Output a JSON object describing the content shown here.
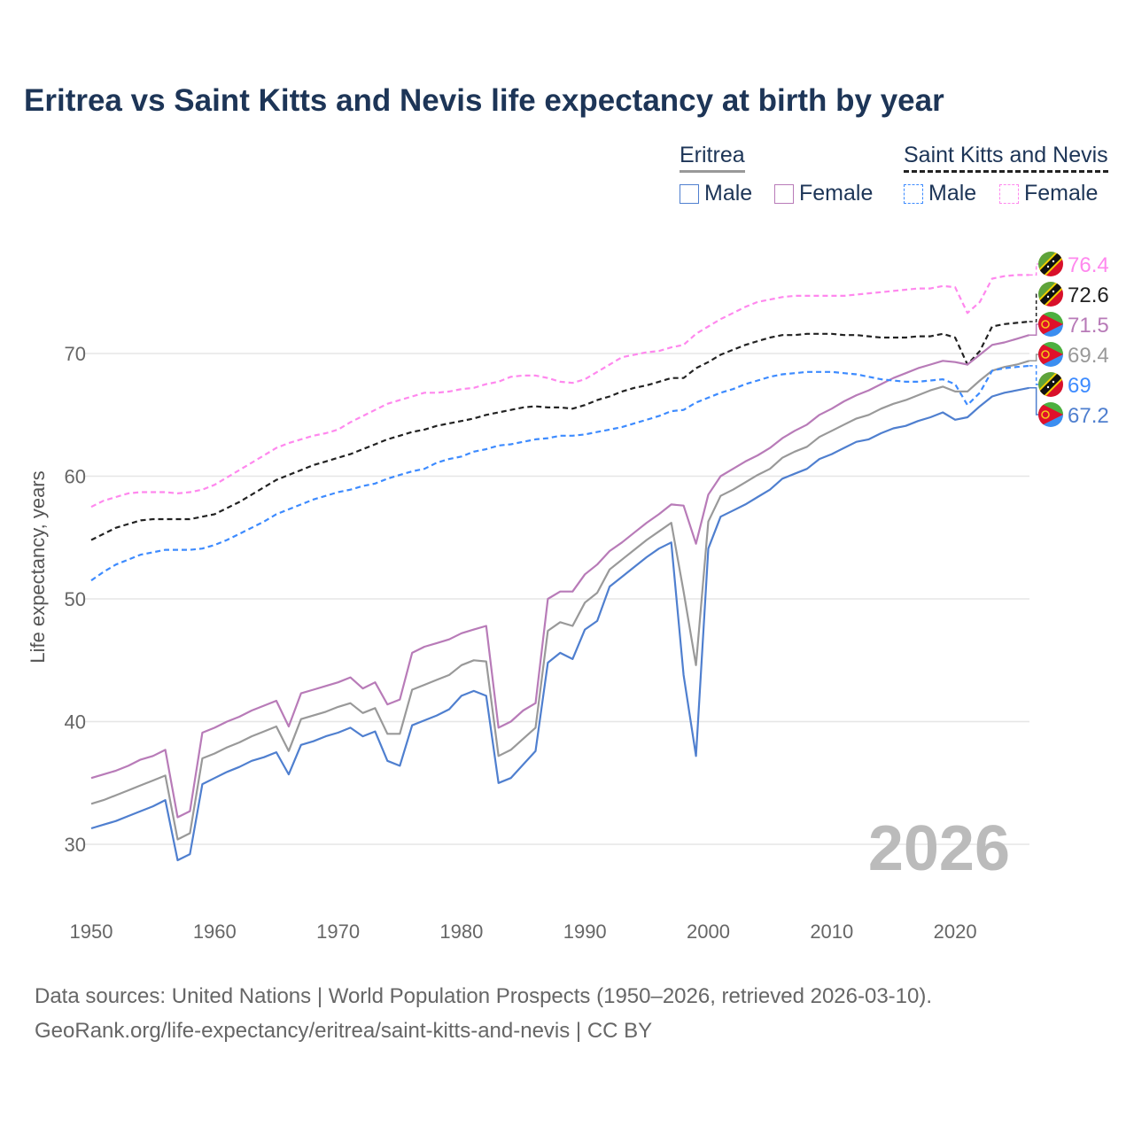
{
  "chart_data": {
    "type": "line",
    "title": "Eritrea vs Saint Kitts and Nevis life expectancy at birth by year",
    "xlabel": "",
    "ylabel": "Life expectancy, years",
    "xlim": [
      1950,
      2026
    ],
    "ylim": [
      25,
      80
    ],
    "x_ticks": [
      1950,
      1960,
      1970,
      1980,
      1990,
      2000,
      2010,
      2020
    ],
    "y_ticks": [
      30,
      40,
      50,
      60,
      70
    ],
    "grid": true,
    "watermark_year": "2026",
    "legend": {
      "placement": "top-right",
      "groups": [
        {
          "name": "Eritrea",
          "items": [
            "Male",
            "Female"
          ]
        },
        {
          "name": "Saint Kitts and Nevis",
          "items": [
            "Male",
            "Female"
          ]
        }
      ]
    },
    "x_start": 1950,
    "series": [
      {
        "name": "Saint Kitts and Nevis Female",
        "country": "skn",
        "color": "#ff88ee",
        "dashed": true,
        "end_label": "76.4",
        "values": [
          57.5,
          58.0,
          58.3,
          58.6,
          58.7,
          58.7,
          58.7,
          58.6,
          58.7,
          58.9,
          59.3,
          59.9,
          60.5,
          61.1,
          61.7,
          62.3,
          62.7,
          63.0,
          63.3,
          63.5,
          63.8,
          64.4,
          64.9,
          65.4,
          65.9,
          66.2,
          66.5,
          66.8,
          66.8,
          66.9,
          67.1,
          67.2,
          67.5,
          67.7,
          68.1,
          68.2,
          68.2,
          68.0,
          67.7,
          67.6,
          67.9,
          68.5,
          69.1,
          69.7,
          69.9,
          70.1,
          70.2,
          70.5,
          70.7,
          71.6,
          72.2,
          72.8,
          73.3,
          73.8,
          74.2,
          74.4,
          74.6,
          74.7,
          74.7,
          74.7,
          74.7,
          74.7,
          74.8,
          74.9,
          75.0,
          75.1,
          75.2,
          75.3,
          75.3,
          75.5,
          75.4,
          73.3,
          74.2,
          76.1,
          76.3,
          76.4,
          76.4
        ]
      },
      {
        "name": "Saint Kitts and Nevis",
        "country": "skn",
        "color": "#222222",
        "dashed": true,
        "end_label": "72.6",
        "values": [
          54.8,
          55.3,
          55.8,
          56.1,
          56.4,
          56.5,
          56.5,
          56.5,
          56.5,
          56.7,
          56.9,
          57.4,
          57.9,
          58.5,
          59.1,
          59.7,
          60.1,
          60.5,
          60.9,
          61.2,
          61.5,
          61.8,
          62.2,
          62.6,
          63.0,
          63.3,
          63.6,
          63.8,
          64.1,
          64.3,
          64.5,
          64.7,
          65.0,
          65.2,
          65.4,
          65.6,
          65.7,
          65.6,
          65.6,
          65.5,
          65.8,
          66.2,
          66.5,
          66.9,
          67.2,
          67.4,
          67.7,
          68.0,
          68.0,
          68.8,
          69.3,
          69.9,
          70.3,
          70.7,
          71.0,
          71.3,
          71.5,
          71.5,
          71.6,
          71.6,
          71.6,
          71.5,
          71.5,
          71.4,
          71.3,
          71.3,
          71.3,
          71.4,
          71.4,
          71.6,
          71.3,
          69.1,
          70.2,
          72.2,
          72.4,
          72.5,
          72.6
        ]
      },
      {
        "name": "Eritrea Female",
        "country": "eritrea",
        "color": "#b87bb8",
        "dashed": false,
        "end_label": "71.5",
        "values": [
          35.4,
          35.7,
          36.0,
          36.4,
          36.9,
          37.2,
          37.7,
          32.2,
          32.7,
          39.1,
          39.5,
          40.0,
          40.4,
          40.9,
          41.3,
          41.7,
          39.6,
          42.3,
          42.6,
          42.9,
          43.2,
          43.6,
          42.7,
          43.2,
          41.4,
          41.8,
          45.6,
          46.1,
          46.4,
          46.7,
          47.2,
          47.5,
          47.8,
          39.5,
          40.0,
          40.9,
          41.5,
          50.0,
          50.6,
          50.6,
          52.0,
          52.8,
          53.9,
          54.6,
          55.4,
          56.2,
          56.9,
          57.7,
          57.6,
          54.5,
          58.5,
          60.0,
          60.6,
          61.2,
          61.7,
          62.3,
          63.1,
          63.7,
          64.2,
          65.0,
          65.5,
          66.1,
          66.6,
          67.0,
          67.5,
          68.0,
          68.4,
          68.8,
          69.1,
          69.4,
          69.3,
          69.1,
          69.9,
          70.7,
          70.9,
          71.2,
          71.5
        ]
      },
      {
        "name": "Eritrea",
        "country": "eritrea",
        "color": "#999999",
        "dashed": false,
        "end_label": "69.4",
        "values": [
          33.3,
          33.6,
          34.0,
          34.4,
          34.8,
          35.2,
          35.6,
          30.4,
          30.9,
          37.0,
          37.4,
          37.9,
          38.3,
          38.8,
          39.2,
          39.6,
          37.6,
          40.2,
          40.5,
          40.8,
          41.2,
          41.5,
          40.7,
          41.1,
          39.0,
          39.0,
          42.6,
          43.0,
          43.4,
          43.8,
          44.6,
          45.0,
          44.9,
          37.2,
          37.7,
          38.6,
          39.5,
          47.4,
          48.1,
          47.8,
          49.7,
          50.5,
          52.4,
          53.2,
          54.0,
          54.8,
          55.5,
          56.2,
          50.6,
          44.6,
          56.3,
          58.4,
          58.9,
          59.5,
          60.1,
          60.6,
          61.5,
          62.0,
          62.4,
          63.2,
          63.7,
          64.2,
          64.7,
          65.0,
          65.5,
          65.9,
          66.2,
          66.6,
          67.0,
          67.3,
          66.9,
          66.9,
          67.8,
          68.6,
          68.9,
          69.1,
          69.4
        ]
      },
      {
        "name": "Saint Kitts and Nevis Male",
        "country": "skn",
        "color": "#3d8bff",
        "dashed": true,
        "end_label": "69",
        "values": [
          51.5,
          52.2,
          52.8,
          53.2,
          53.6,
          53.8,
          54.0,
          54.0,
          54.0,
          54.1,
          54.4,
          54.8,
          55.3,
          55.8,
          56.3,
          56.9,
          57.3,
          57.7,
          58.1,
          58.4,
          58.7,
          58.9,
          59.2,
          59.4,
          59.8,
          60.1,
          60.4,
          60.6,
          61.1,
          61.4,
          61.6,
          62.0,
          62.2,
          62.5,
          62.6,
          62.8,
          63.0,
          63.1,
          63.3,
          63.3,
          63.4,
          63.6,
          63.8,
          64.0,
          64.3,
          64.6,
          64.9,
          65.3,
          65.4,
          66.0,
          66.4,
          66.8,
          67.1,
          67.5,
          67.8,
          68.1,
          68.3,
          68.4,
          68.5,
          68.5,
          68.5,
          68.4,
          68.3,
          68.1,
          67.9,
          67.8,
          67.7,
          67.7,
          67.8,
          67.9,
          67.5,
          65.8,
          66.8,
          68.6,
          68.8,
          68.9,
          69.0
        ]
      },
      {
        "name": "Eritrea Male",
        "country": "eritrea",
        "color": "#4f7fcf",
        "dashed": false,
        "end_label": "67.2",
        "values": [
          31.3,
          31.6,
          31.9,
          32.3,
          32.7,
          33.1,
          33.6,
          28.7,
          29.2,
          34.9,
          35.4,
          35.9,
          36.3,
          36.8,
          37.1,
          37.5,
          35.7,
          38.1,
          38.4,
          38.8,
          39.1,
          39.5,
          38.8,
          39.2,
          36.8,
          36.4,
          39.7,
          40.1,
          40.5,
          41.0,
          42.1,
          42.5,
          42.1,
          35.0,
          35.4,
          36.5,
          37.6,
          44.8,
          45.6,
          45.1,
          47.5,
          48.2,
          51.0,
          51.8,
          52.6,
          53.4,
          54.1,
          54.6,
          43.8,
          37.2,
          54.1,
          56.7,
          57.2,
          57.7,
          58.3,
          58.9,
          59.8,
          60.2,
          60.6,
          61.4,
          61.8,
          62.3,
          62.8,
          63.0,
          63.5,
          63.9,
          64.1,
          64.5,
          64.8,
          65.2,
          64.6,
          64.8,
          65.7,
          66.5,
          66.8,
          67.0,
          67.2
        ]
      }
    ]
  },
  "legend_labels": {
    "eritrea": "Eritrea",
    "skn": "Saint Kitts and Nevis",
    "male": "Male",
    "female": "Female"
  },
  "footer": {
    "line1": "Data sources: United Nations | World Population Prospects (1950–2026, retrieved 2026-03-10).",
    "line2": "GeoRank.org/life-expectancy/eritrea/saint-kitts-and-nevis | CC BY"
  }
}
